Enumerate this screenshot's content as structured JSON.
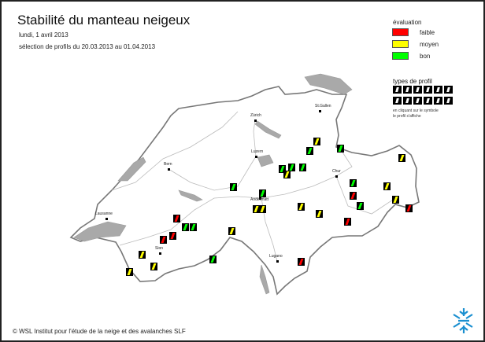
{
  "title": "Stabilité du manteau neigeux",
  "date": "lundi, 1 avril 2013",
  "selection": "sélection de profils du 20.03.2013 au 01.04.2013",
  "legend": {
    "title": "évaluation",
    "items": [
      {
        "label": "faible",
        "color": "#ff0000"
      },
      {
        "label": "moyen",
        "color": "#ffff00"
      },
      {
        "label": "bon",
        "color": "#00ff00"
      }
    ]
  },
  "profile_types": {
    "title": "types de profil",
    "note_line1": "en cliquant sur le symbole",
    "note_line2": "le profil s'affiche"
  },
  "cities": [
    "Zürich",
    "St.Gallen",
    "Luzern",
    "Bern",
    "Chur",
    "Andermatt",
    "Lausanne",
    "Sion",
    "Lugano"
  ],
  "profiles": [
    "moyen",
    "bon",
    "bon",
    "moyen",
    "bon",
    "bon",
    "moyen",
    "bon",
    "bon",
    "bon",
    "bon",
    "moyen",
    "faible",
    "bon",
    "moyen",
    "moyen",
    "moyen",
    "moyen",
    "moyen",
    "faible",
    "faible",
    "faible",
    "bon",
    "bon",
    "faible",
    "faible",
    "moyen",
    "moyen",
    "bon",
    "moyen",
    "moyen",
    "faible"
  ],
  "footer": "© WSL Institut pour l'étude de la neige et des avalanches SLF",
  "logo_text": "SLF"
}
